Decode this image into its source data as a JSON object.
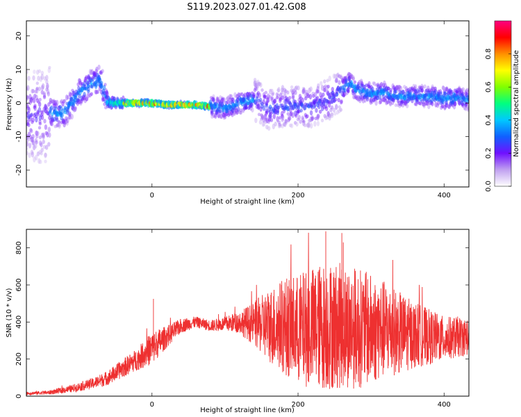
{
  "figure": {
    "title": "S119.2023.027.01.42.G08"
  },
  "chart_data": [
    {
      "type": "heatmap",
      "description_type": "spectrogram",
      "xlabel": "Height of straight line (km)",
      "ylabel": "Frequency (Hz)",
      "xlim": [
        -172,
        434
      ],
      "ylim": [
        -25,
        24.5
      ],
      "xticks": [
        0,
        200,
        400
      ],
      "yticks": [
        -20,
        -10,
        0,
        10,
        20
      ],
      "frequency_ridge": {
        "x": [
          -172,
          -150,
          -140,
          -120,
          -100,
          -80,
          -70,
          -62,
          -55,
          -40,
          -20,
          0,
          20,
          40,
          60,
          80,
          100,
          120,
          140,
          150,
          160,
          180,
          200,
          220,
          240,
          260,
          270,
          280,
          300,
          320,
          340,
          360,
          380,
          400,
          420,
          434
        ],
        "y": [
          -4,
          -4,
          -3,
          -3,
          3,
          6,
          7,
          0.5,
          0,
          0,
          0,
          0,
          -0.5,
          -0.5,
          -0.5,
          -1,
          -1.5,
          0,
          1,
          0,
          -2,
          -1,
          -1,
          -1,
          1,
          4,
          6,
          4,
          3,
          3,
          2,
          2,
          2,
          1.5,
          1.5,
          1
        ]
      },
      "colorbar": {
        "label": "Normalized spectral amplitude",
        "ticks": [
          0.0,
          0.2,
          0.4,
          0.6,
          0.8
        ],
        "range": [
          0,
          1
        ],
        "colors": [
          "#ffffff",
          "#c0a0f0",
          "#7010ff",
          "#1060ff",
          "#00c8ff",
          "#00ff80",
          "#80ff00",
          "#ffff00",
          "#ff9000",
          "#ff0000",
          "#ff0080"
        ]
      }
    },
    {
      "type": "line",
      "xlabel": "Height of straight line (km)",
      "ylabel": "SNR (10 * v/v)",
      "xlim": [
        -172,
        434
      ],
      "ylim": [
        0,
        900
      ],
      "xticks": [
        0,
        200,
        400
      ],
      "yticks": [
        0,
        200,
        400,
        600,
        800
      ],
      "color": "#ee3030",
      "envelope": {
        "x": [
          -172,
          -140,
          -110,
          -80,
          -60,
          -40,
          -20,
          0,
          20,
          40,
          60,
          80,
          100,
          120,
          140,
          160,
          180,
          200,
          220,
          240,
          260,
          280,
          300,
          320,
          340,
          360,
          380,
          400,
          420,
          434
        ],
        "center": [
          15,
          20,
          40,
          70,
          100,
          150,
          200,
          260,
          320,
          380,
          400,
          380,
          390,
          400,
          390,
          380,
          380,
          360,
          370,
          380,
          380,
          370,
          360,
          360,
          340,
          330,
          320,
          310,
          320,
          320
        ],
        "half_range": [
          8,
          12,
          20,
          30,
          40,
          50,
          60,
          90,
          60,
          40,
          30,
          30,
          40,
          60,
          120,
          200,
          260,
          300,
          330,
          350,
          340,
          330,
          300,
          260,
          220,
          180,
          150,
          120,
          110,
          100
        ],
        "peak_values": [
          525,
          890,
          880,
          830
        ]
      }
    }
  ]
}
